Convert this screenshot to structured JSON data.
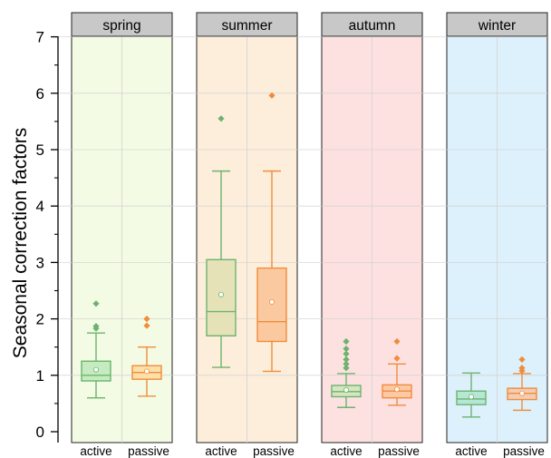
{
  "chart_data": {
    "type": "box",
    "ylabel": "Seasonal correction factors",
    "ylim": [
      0,
      7
    ],
    "yticks": [
      "0",
      "1",
      "2",
      "3",
      "4",
      "5",
      "6",
      "7"
    ],
    "categories": [
      "active",
      "passive"
    ],
    "series_colors": {
      "active": "#6db36d",
      "passive": "#f08c3c"
    },
    "panels": [
      {
        "season": "spring",
        "background": "#f3fbe4",
        "boxes": [
          {
            "category": "active",
            "box_fill": "#c4ecc0",
            "whisker_low": 0.6,
            "q1": 0.9,
            "median": 1.0,
            "q3": 1.25,
            "whisker_high": 1.75,
            "mean": 1.1,
            "outliers": [
              1.83,
              1.87,
              2.27
            ]
          },
          {
            "category": "passive",
            "box_fill": "#fde0a8",
            "whisker_low": 0.63,
            "q1": 0.93,
            "median": 1.05,
            "q3": 1.17,
            "whisker_high": 1.5,
            "mean": 1.07,
            "outliers": [
              1.88,
              2.0
            ]
          }
        ]
      },
      {
        "season": "summer",
        "background": "#fdeedb",
        "boxes": [
          {
            "category": "active",
            "box_fill": "#e6e2b8",
            "whisker_low": 1.14,
            "q1": 1.7,
            "median": 2.13,
            "q3": 3.05,
            "whisker_high": 4.62,
            "mean": 2.43,
            "outliers": [
              5.55
            ]
          },
          {
            "category": "passive",
            "box_fill": "#fbc9a0",
            "whisker_low": 1.07,
            "q1": 1.6,
            "median": 1.95,
            "q3": 2.9,
            "whisker_high": 4.62,
            "mean": 2.3,
            "outliers": [
              5.96
            ]
          }
        ]
      },
      {
        "season": "autumn",
        "background": "#fde1e1",
        "boxes": [
          {
            "category": "active",
            "box_fill": "#d6e6c0",
            "whisker_low": 0.43,
            "q1": 0.62,
            "median": 0.71,
            "q3": 0.82,
            "whisker_high": 1.03,
            "mean": 0.74,
            "outliers": [
              1.13,
              1.2,
              1.28,
              1.38,
              1.47,
              1.6
            ]
          },
          {
            "category": "passive",
            "box_fill": "#fbc9a6",
            "whisker_low": 0.47,
            "q1": 0.6,
            "median": 0.72,
            "q3": 0.83,
            "whisker_high": 1.2,
            "mean": 0.75,
            "outliers": [
              1.3,
              1.6
            ]
          }
        ]
      },
      {
        "season": "winter",
        "background": "#dcf1fb",
        "boxes": [
          {
            "category": "active",
            "box_fill": "#b5e6d6",
            "whisker_low": 0.26,
            "q1": 0.48,
            "median": 0.58,
            "q3": 0.72,
            "whisker_high": 1.04,
            "mean": 0.62,
            "outliers": []
          },
          {
            "category": "passive",
            "box_fill": "#f2cdb3",
            "whisker_low": 0.38,
            "q1": 0.57,
            "median": 0.68,
            "q3": 0.77,
            "whisker_high": 1.03,
            "mean": 0.68,
            "outliers": [
              1.08,
              1.13,
              1.28
            ]
          }
        ]
      }
    ]
  }
}
